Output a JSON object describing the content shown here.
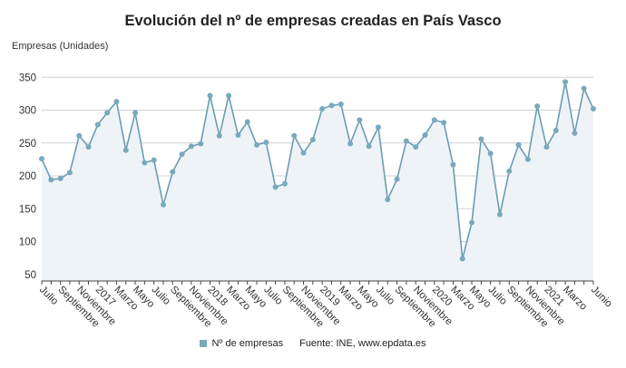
{
  "chart_data": {
    "type": "area",
    "title": "Evolución del nº de empresas creadas en País Vasco",
    "ylabel": "Empresas (Unidades)",
    "xlabel": "",
    "ylim": [
      40,
      360
    ],
    "yticks": [
      50,
      100,
      150,
      200,
      250,
      300,
      350
    ],
    "grid": "horizontal",
    "legend_position": "bottom",
    "x_tick_labels": [
      "Julio",
      "Septiembre",
      "Noviembre",
      "2017",
      "Marzo",
      "Mayo",
      "Julio",
      "Septiembre",
      "Noviembre",
      "2018",
      "Marzo",
      "Mayo",
      "Julio",
      "Septiembre",
      "Noviembre",
      "2019",
      "Marzo",
      "Mayo",
      "Julio",
      "Septiembre",
      "Noviembre",
      "2020",
      "Marzo",
      "Mayo",
      "Julio",
      "Septiembre",
      "Noviembre",
      "2021",
      "Marzo",
      "Junio"
    ],
    "x_tick_indices": [
      0,
      2,
      4,
      6,
      8,
      10,
      12,
      14,
      16,
      18,
      20,
      22,
      24,
      26,
      28,
      30,
      32,
      34,
      36,
      38,
      40,
      42,
      44,
      46,
      48,
      50,
      52,
      54,
      56,
      59
    ],
    "series": [
      {
        "name": "Nº de empresas",
        "color": "#6b9db3",
        "values": [
          226,
          194,
          196,
          205,
          261,
          244,
          278,
          296,
          313,
          239,
          296,
          220,
          224,
          156,
          206,
          233,
          245,
          249,
          322,
          261,
          322,
          262,
          282,
          247,
          251,
          183,
          188,
          261,
          235,
          255,
          302,
          307,
          309,
          249,
          285,
          245,
          274,
          164,
          195,
          253,
          244,
          262,
          285,
          281,
          217,
          74,
          129,
          256,
          234,
          141,
          207,
          247,
          225,
          306,
          244,
          269,
          343,
          265,
          333,
          302
        ]
      }
    ]
  },
  "legend": {
    "series_label": "Nº de empresas",
    "source": "Fuente: INE, www.epdata.es"
  },
  "colors": {
    "line": "#6b9db3",
    "marker": "#79a9bd",
    "fill": "#eef3f8",
    "grid": "#d0d0d0",
    "axis": "#444444"
  }
}
